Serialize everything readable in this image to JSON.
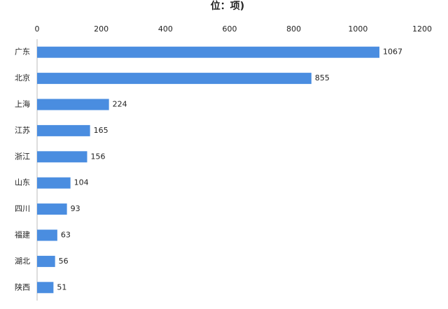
{
  "chart_data": {
    "type": "hbar",
    "title": "位：项)",
    "categories": [
      "广东",
      "北京",
      "上海",
      "江苏",
      "浙江",
      "山东",
      "四川",
      "福建",
      "湖北",
      "陕西"
    ],
    "values": [
      1067,
      855,
      224,
      165,
      156,
      104,
      93,
      63,
      56,
      51
    ],
    "color": "#4a8de0",
    "xlim": [
      0,
      1200
    ],
    "xticks": [
      0,
      200,
      400,
      600,
      800,
      1000,
      1200
    ],
    "grid": false
  }
}
